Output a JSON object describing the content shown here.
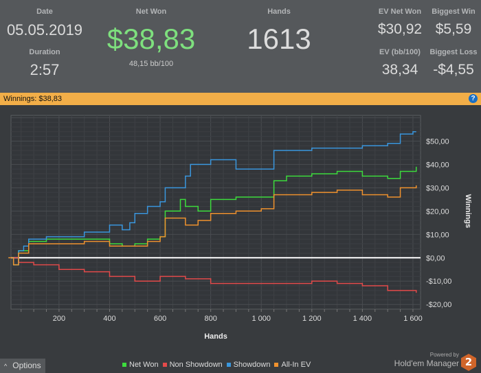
{
  "stats": {
    "date_label": "Date",
    "date": "05.05.2019",
    "duration_label": "Duration",
    "duration": "2:57",
    "net_won_label": "Net Won",
    "net_won": "$38,83",
    "bb100": "48,15 bb/100",
    "hands_label": "Hands",
    "hands": "1613",
    "ev_net_won_label": "EV Net Won",
    "ev_net_won": "$30,92",
    "biggest_win_label": "Biggest Win",
    "biggest_win": "$5,59",
    "ev_bb100_label": "EV (bb/100)",
    "ev_bb100": "38,34",
    "biggest_loss_label": "Biggest Loss",
    "biggest_loss": "-$4,55"
  },
  "bar": {
    "title": "Winnings: $38,83",
    "help": "?"
  },
  "footer": {
    "options": "Options",
    "powered_by": "Powered by",
    "brand": "Hold'em Manager",
    "brand_badge": "2"
  },
  "chart_data": {
    "type": "line",
    "xlabel": "Hands",
    "ylabel": "Winnings",
    "xlim": [
      10,
      1630
    ],
    "ylim": [
      -22,
      61
    ],
    "xticks": [
      200,
      400,
      600,
      800,
      1000,
      1200,
      1400,
      1600
    ],
    "xtick_labels": [
      "200",
      "400",
      "600",
      "800",
      "1 000",
      "1 200",
      "1 400",
      "1 600"
    ],
    "yticks": [
      50,
      40,
      30,
      20,
      10,
      0,
      -10,
      -20
    ],
    "ytick_labels": [
      "$50,00",
      "$40,00",
      "$30,00",
      "$20,00",
      "$10,00",
      "$0,00",
      "-$10,00",
      "-$20,00"
    ],
    "series": [
      {
        "name": "Net Won",
        "color": "#3ddc3d",
        "x": [
          0,
          20,
          40,
          80,
          150,
          300,
          400,
          450,
          500,
          550,
          600,
          620,
          680,
          700,
          750,
          800,
          900,
          1000,
          1050,
          1100,
          1200,
          1300,
          1400,
          1500,
          1550,
          1613
        ],
        "y": [
          0,
          -3,
          3,
          7,
          8,
          8,
          6,
          5,
          6,
          8,
          9,
          20,
          25,
          22,
          20,
          25,
          26,
          26,
          33,
          35,
          36,
          37,
          35,
          34,
          37,
          39
        ]
      },
      {
        "name": "Non Showdown",
        "color": "#e34a4a",
        "x": [
          0,
          40,
          100,
          200,
          300,
          400,
          500,
          600,
          700,
          800,
          900,
          1000,
          1100,
          1200,
          1300,
          1400,
          1500,
          1613
        ],
        "y": [
          0,
          -2,
          -3,
          -5,
          -6,
          -8,
          -10,
          -8,
          -9,
          -11,
          -11,
          -11,
          -11,
          -10,
          -11,
          -12,
          -14,
          -15
        ]
      },
      {
        "name": "Showdown",
        "color": "#3a97de",
        "x": [
          0,
          20,
          40,
          60,
          80,
          150,
          300,
          400,
          450,
          480,
          500,
          550,
          600,
          620,
          700,
          720,
          800,
          900,
          1000,
          1050,
          1100,
          1200,
          1300,
          1400,
          1500,
          1550,
          1600,
          1613
        ],
        "y": [
          0,
          -3,
          3,
          5,
          8,
          9,
          11,
          14,
          12,
          15,
          19,
          22,
          24,
          30,
          35,
          40,
          42,
          38,
          38,
          46,
          46,
          47,
          47,
          48,
          49,
          53,
          54,
          54
        ]
      },
      {
        "name": "All-In EV",
        "color": "#f0922e",
        "x": [
          0,
          20,
          40,
          80,
          300,
          400,
          500,
          550,
          600,
          620,
          700,
          750,
          800,
          900,
          1000,
          1050,
          1100,
          1200,
          1300,
          1400,
          1500,
          1550,
          1613
        ],
        "y": [
          0,
          -3,
          2,
          6,
          7,
          5,
          5,
          7,
          9,
          17,
          14,
          16,
          19,
          20,
          21,
          27,
          27,
          28,
          29,
          27,
          26,
          30,
          31
        ]
      }
    ]
  }
}
